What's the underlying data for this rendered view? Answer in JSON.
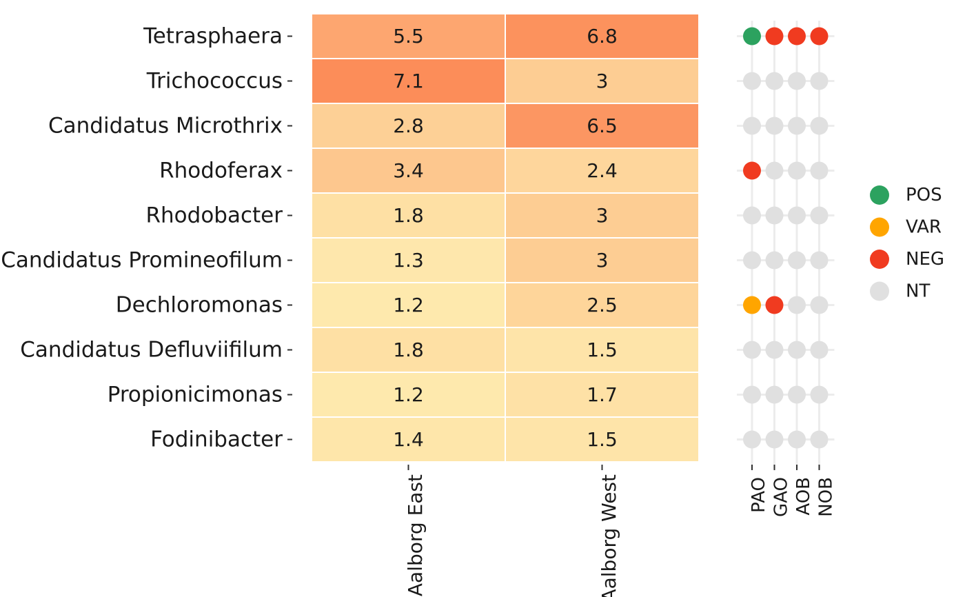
{
  "chart_data": [
    {
      "type": "heatmap",
      "title": "",
      "xlabel": "",
      "ylabel": "",
      "rows": [
        "Tetrasphaera",
        "Trichococcus",
        "Candidatus Microthrix",
        "Rhodoferax",
        "Rhodobacter",
        "Candidatus Promineofilum",
        "Dechloromonas",
        "Candidatus Defluviifilum",
        "Propionicimonas",
        "Fodinibacter"
      ],
      "columns": [
        "Aalborg East",
        "Aalborg West"
      ],
      "values": [
        [
          5.5,
          6.8
        ],
        [
          7.1,
          3
        ],
        [
          2.8,
          6.5
        ],
        [
          3.4,
          2.4
        ],
        [
          1.8,
          3
        ],
        [
          1.3,
          3
        ],
        [
          1.2,
          2.5
        ],
        [
          1.8,
          1.5
        ],
        [
          1.2,
          1.7
        ],
        [
          1.4,
          1.5
        ]
      ],
      "color_scale": {
        "low": "#fee9ad",
        "high": "#fc8d59"
      },
      "grid": false
    },
    {
      "type": "scatter",
      "title": "",
      "xlabel": "",
      "ylabel": "",
      "categories": [
        "PAO",
        "GAO",
        "AOB",
        "NOB"
      ],
      "rows": [
        "Tetrasphaera",
        "Trichococcus",
        "Candidatus Microthrix",
        "Rhodoferax",
        "Rhodobacter",
        "Candidatus Promineofilum",
        "Dechloromonas",
        "Candidatus Defluviifilum",
        "Propionicimonas",
        "Fodinibacter"
      ],
      "status": [
        [
          "POS",
          "NEG",
          "NEG",
          "NEG"
        ],
        [
          "NT",
          "NT",
          "NT",
          "NT"
        ],
        [
          "NT",
          "NT",
          "NT",
          "NT"
        ],
        [
          "NEG",
          "NT",
          "NT",
          "NT"
        ],
        [
          "NT",
          "NT",
          "NT",
          "NT"
        ],
        [
          "NT",
          "NT",
          "NT",
          "NT"
        ],
        [
          "VAR",
          "NEG",
          "NT",
          "NT"
        ],
        [
          "NT",
          "NT",
          "NT",
          "NT"
        ],
        [
          "NT",
          "NT",
          "NT",
          "NT"
        ],
        [
          "NT",
          "NT",
          "NT",
          "NT"
        ]
      ],
      "legend": {
        "placement": "right",
        "entries": [
          {
            "label": "POS",
            "color": "#2ca25f"
          },
          {
            "label": "VAR",
            "color": "#ffa500"
          },
          {
            "label": "NEG",
            "color": "#f03b20"
          },
          {
            "label": "NT",
            "color": "#e0e0e0"
          }
        ]
      },
      "grid": true
    }
  ]
}
